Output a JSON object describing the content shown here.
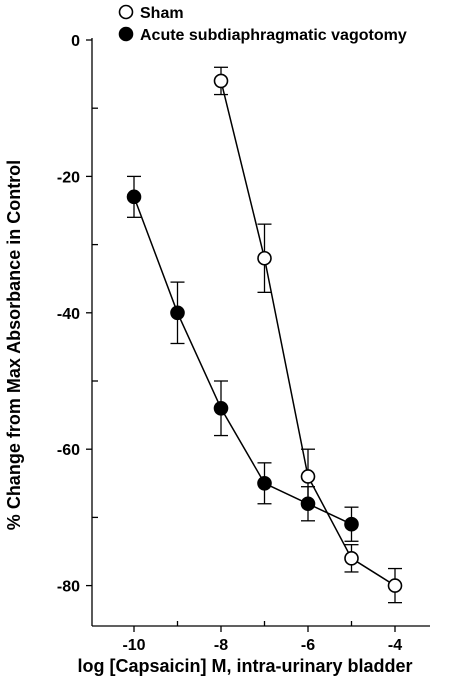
{
  "chart_data": {
    "type": "line",
    "xlabel": "log [Capsaicin]  M, intra-urinary bladder",
    "ylabel": "% Change from Max Absorbance in Control",
    "x_ticks": [
      -10,
      -9,
      -8,
      -7,
      -6,
      -5,
      -4
    ],
    "x_tick_labels": [
      "-10",
      "",
      "-8",
      "",
      "-6",
      "",
      "-4"
    ],
    "y_ticks": [
      0,
      -10,
      -20,
      -30,
      -40,
      -50,
      -60,
      -70,
      -80
    ],
    "y_tick_labels": [
      "0",
      "",
      "-20",
      "",
      "-40",
      "",
      "-60",
      "",
      "-80"
    ],
    "xlim": [
      -11,
      -3.5
    ],
    "ylim": [
      -85,
      0
    ],
    "legend_position": "top-left",
    "series": [
      {
        "name": "Sham",
        "marker": "open-circle",
        "color": "#000000",
        "fill": "#ffffff",
        "points": [
          {
            "x": -8,
            "y": -6,
            "err": 2
          },
          {
            "x": -7,
            "y": -32,
            "err": 5
          },
          {
            "x": -6,
            "y": -64,
            "err": 4
          },
          {
            "x": -5,
            "y": -76,
            "err": 2
          },
          {
            "x": -4,
            "y": -80,
            "err": 2.5
          }
        ]
      },
      {
        "name": "Acute subdiaphragmatic vagotomy",
        "marker": "filled-circle",
        "color": "#000000",
        "fill": "#000000",
        "points": [
          {
            "x": -10,
            "y": -23,
            "err": 3
          },
          {
            "x": -9,
            "y": -40,
            "err": 4.5
          },
          {
            "x": -8,
            "y": -54,
            "err": 4
          },
          {
            "x": -7,
            "y": -65,
            "err": 3
          },
          {
            "x": -6,
            "y": -68,
            "err": 2.5
          },
          {
            "x": -5,
            "y": -71,
            "err": 2.5
          }
        ]
      }
    ]
  }
}
